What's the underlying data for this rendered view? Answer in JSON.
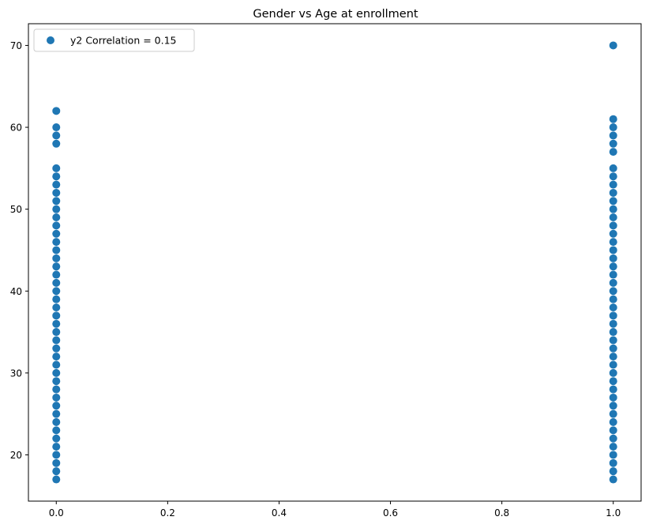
{
  "chart_data": {
    "type": "scatter",
    "title": "Gender vs Age at enrollment",
    "xlabel": "",
    "ylabel": "",
    "xlim": [
      -0.05,
      1.05
    ],
    "ylim": [
      14.35,
      72.65
    ],
    "xticks": [
      0.0,
      0.2,
      0.4,
      0.6,
      0.8,
      1.0
    ],
    "xtick_labels": [
      "0.0",
      "0.2",
      "0.4",
      "0.6",
      "0.8",
      "1.0"
    ],
    "yticks": [
      20,
      30,
      40,
      50,
      60,
      70
    ],
    "ytick_labels": [
      "20",
      "30",
      "40",
      "50",
      "60",
      "70"
    ],
    "grid": false,
    "legend_position": "upper-left",
    "series": [
      {
        "name": "y2 Correlation = 0.15",
        "color": "#1f77b4",
        "groups": [
          {
            "x": 0,
            "y": [
              17,
              18,
              19,
              20,
              21,
              22,
              23,
              24,
              25,
              26,
              27,
              28,
              29,
              30,
              31,
              32,
              33,
              34,
              35,
              36,
              37,
              38,
              39,
              40,
              41,
              42,
              43,
              44,
              45,
              46,
              47,
              48,
              49,
              50,
              51,
              52,
              53,
              54,
              55,
              58,
              59,
              60,
              62
            ]
          },
          {
            "x": 1,
            "y": [
              17,
              18,
              19,
              20,
              21,
              22,
              23,
              24,
              25,
              26,
              27,
              28,
              29,
              30,
              31,
              32,
              33,
              34,
              35,
              36,
              37,
              38,
              39,
              40,
              41,
              42,
              43,
              44,
              45,
              46,
              47,
              48,
              49,
              50,
              51,
              52,
              53,
              54,
              55,
              57,
              58,
              59,
              60,
              61,
              70
            ]
          }
        ]
      }
    ]
  }
}
